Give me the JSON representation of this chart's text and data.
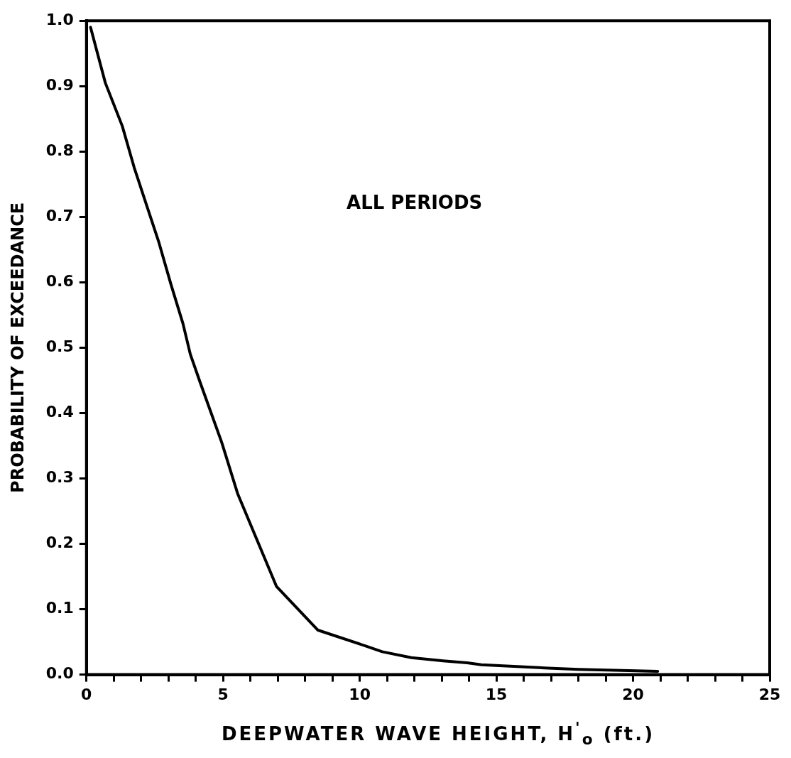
{
  "chart_data": {
    "type": "line",
    "xlabel": "DEEPWATER WAVE HEIGHT, H$^{'}$$_{o}$ (ft.)",
    "ylabel": "PROBABILITY OF EXCEEDANCE",
    "annotations": [
      "ALL PERIODS"
    ],
    "x": [
      0.15,
      0.69,
      1.31,
      1.75,
      2.2,
      2.65,
      3.09,
      3.53,
      3.8,
      4.15,
      4.95,
      5.53,
      6.95,
      8.47,
      10.2,
      10.82,
      11.89,
      13.05,
      13.93,
      14.45,
      15.9,
      16.9,
      18.0,
      20.9
    ],
    "series": [
      {
        "color": "#000000",
        "values": [
          0.99,
          0.905,
          0.839,
          0.775,
          0.718,
          0.661,
          0.597,
          0.537,
          0.49,
          0.448,
          0.355,
          0.277,
          0.135,
          0.068,
          0.044,
          0.035,
          0.026,
          0.021,
          0.018,
          0.015,
          0.012,
          0.01,
          0.008,
          0.005
        ]
      }
    ],
    "xlim": [
      0,
      25
    ],
    "ylim": [
      0,
      1
    ],
    "xticks": [
      0,
      {
        "value": 1,
        "label": null
      },
      {
        "value": 2,
        "label": null
      },
      {
        "value": 3,
        "label": null
      },
      {
        "value": 4,
        "label": null
      },
      5,
      {
        "value": 6,
        "label": null
      },
      {
        "value": 7,
        "label": null
      },
      {
        "value": 8,
        "label": null
      },
      {
        "value": 9,
        "label": null
      },
      10,
      {
        "value": 11,
        "label": null
      },
      {
        "value": 12,
        "label": null
      },
      {
        "value": 13,
        "label": null
      },
      {
        "value": 14,
        "label": null
      },
      15,
      {
        "value": 16,
        "label": null
      },
      {
        "value": 17,
        "label": null
      },
      {
        "value": 18,
        "label": null
      },
      {
        "value": 19,
        "label": null
      },
      20,
      {
        "value": 21,
        "label": null
      },
      {
        "value": 22,
        "label": null
      },
      {
        "value": 23,
        "label": null
      },
      {
        "value": 24,
        "label": null
      },
      25
    ],
    "yticks": [
      {
        "value": 0,
        "label": "0.0"
      },
      0.1,
      0.2,
      0.3,
      0.4,
      0.5,
      0.6,
      0.7,
      0.8,
      0.9,
      {
        "value": 1,
        "label": "1.0"
      }
    ],
    "grid": false,
    "legend": false,
    "marker": "none",
    "line_style": "solid"
  }
}
